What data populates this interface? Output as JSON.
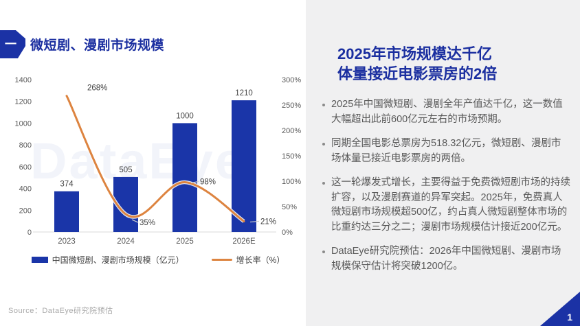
{
  "header": {
    "badge": "一",
    "title": "微短剧、漫剧市场规模"
  },
  "watermark": "DataEye",
  "chart_data": {
    "type": "bar",
    "subtype": "combo-bar-line-dual-axis",
    "categories": [
      "2023",
      "2024",
      "2025",
      "2026E"
    ],
    "series": [
      {
        "name": "中国微短剧、漫剧市场规模（亿元）",
        "type": "bar",
        "axis": "left",
        "color": "#1a35a8",
        "values": [
          374,
          505,
          1000,
          1210
        ],
        "labels": [
          "374",
          "505",
          "1000",
          "1210"
        ]
      },
      {
        "name": "增长率（%）",
        "type": "line",
        "axis": "right",
        "color": "#dd8440",
        "values": [
          268,
          35,
          98,
          21
        ],
        "labels": [
          "268%",
          "35%",
          "98%",
          "21%"
        ]
      }
    ],
    "left_axis": {
      "min": 0,
      "max": 1400,
      "ticks": [
        "1400",
        "1200",
        "1000",
        "800",
        "600",
        "400",
        "200",
        "0"
      ]
    },
    "right_axis": {
      "min": 0,
      "max": 300,
      "ticks": [
        "300%",
        "250%",
        "200%",
        "150%",
        "100%",
        "50%",
        "0%"
      ]
    },
    "grid": false,
    "legend_position": "bottom"
  },
  "right_panel": {
    "heading_line1": "2025年市场规模达千亿",
    "heading_line2": "体量接近电影票房的2倍",
    "bullets": [
      "2025年中国微短剧、漫剧全年产值达千亿，这一数值大幅超出此前600亿元左右的市场预期。",
      "同期全国电影总票房为518.32亿元，微短剧、漫剧市场体量已接近电影票房的两倍。",
      "这一轮爆发式增长，主要得益于免费微短剧市场的持续扩容，以及漫剧赛道的异军突起。2025年，免费真人微短剧市场规模超500亿，约占真人微短剧整体市场的比重约达三分之二；漫剧市场规模估计接近200亿元。",
      "DataEye研究院预估：2026年中国微短剧、漫剧市场规模保守估计将突破1200亿。"
    ]
  },
  "footer": {
    "source": "Source：DataEye研究院预估",
    "page_number": "1"
  },
  "colors": {
    "accent_blue": "#1b2fa0",
    "badge_blue": "#1b32a5",
    "bar_blue": "#1a35a8",
    "line_orange": "#dd8440",
    "panel_bg": "#f0f0f1",
    "body_text": "#595959",
    "axis_text": "#595959",
    "source_text": "#a9a9a9"
  }
}
